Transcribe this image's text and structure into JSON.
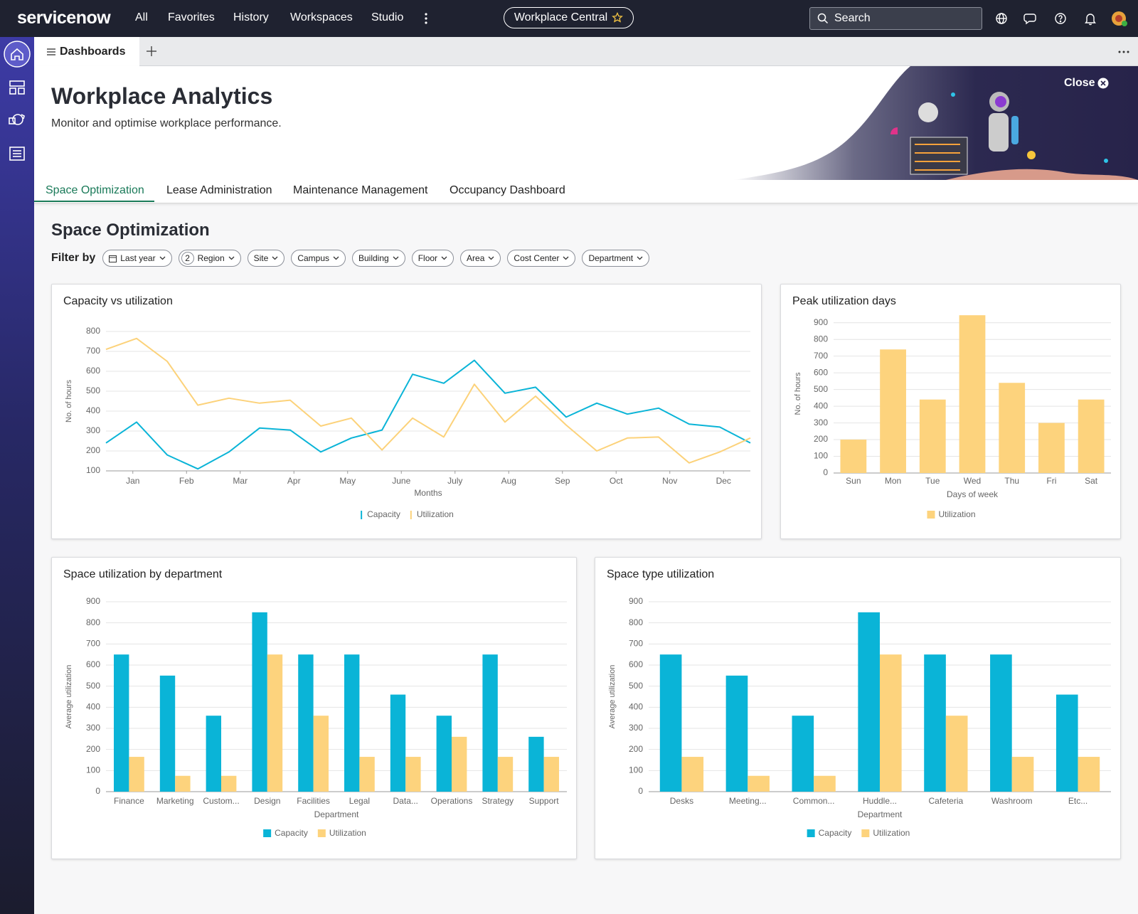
{
  "top_nav": {
    "logo": "servicenow",
    "items": [
      "All",
      "Favorites",
      "History",
      "Workspaces",
      "Studio"
    ],
    "workspace": "Workplace Central",
    "search": "Search"
  },
  "tab_bar": {
    "tab": "Dashboards"
  },
  "header": {
    "title": "Workplace Analytics",
    "subtitle": "Monitor and optimise workplace performance.",
    "close": "Close"
  },
  "tabs": [
    "Space Optimization",
    "Lease Administration",
    "Maintenance Management",
    "Occupancy Dashboard"
  ],
  "section": {
    "title": "Space Optimization",
    "filter_label": "Filter by",
    "filters": [
      {
        "label": "Last year"
      },
      {
        "label": "Region",
        "count": 2
      },
      {
        "label": "Site"
      },
      {
        "label": "Campus"
      },
      {
        "label": "Building"
      },
      {
        "label": "Floor"
      },
      {
        "label": "Area"
      },
      {
        "label": "Cost Center"
      },
      {
        "label": "Department"
      }
    ]
  },
  "chart_data": [
    {
      "type": "line",
      "title": "Capacity vs utilization",
      "x_label": "Months",
      "y_label": "No. of hours",
      "x": [
        0.5,
        1.07,
        1.64,
        2.21,
        2.79,
        3.36,
        3.93,
        4.5,
        5.07,
        5.64,
        6.21,
        6.79,
        7.36,
        7.93,
        8.5,
        9.07,
        9.64,
        10.21,
        10.79,
        11.36,
        11.93,
        12.5
      ],
      "xlim": [
        0.5,
        12.5
      ],
      "xticks": [
        {
          "value": 1,
          "label": "Jan"
        },
        {
          "value": 2,
          "label": "Feb"
        },
        {
          "value": 3,
          "label": "Mar"
        },
        {
          "value": 4,
          "label": "Apr"
        },
        {
          "value": 5,
          "label": "May"
        },
        {
          "value": 6,
          "label": "June"
        },
        {
          "value": 7,
          "label": "July"
        },
        {
          "value": 8,
          "label": "Aug"
        },
        {
          "value": 9,
          "label": "Sep"
        },
        {
          "value": 10,
          "label": "Oct"
        },
        {
          "value": 11,
          "label": "Nov"
        },
        {
          "value": 12,
          "label": "Dec"
        }
      ],
      "ylim": [
        100,
        800
      ],
      "yticks": [
        100,
        200,
        300,
        400,
        500,
        600,
        700,
        800
      ],
      "grid": true,
      "series": [
        {
          "name": "Capacity",
          "color": "#0ab4d7",
          "values": [
            240,
            345,
            180,
            110,
            195,
            315,
            305,
            195,
            265,
            305,
            585,
            540,
            655,
            490,
            520,
            370,
            440,
            385,
            415,
            335,
            320,
            240
          ]
        },
        {
          "name": "Utilization",
          "color": "#fcd27a",
          "values": [
            710,
            765,
            650,
            430,
            465,
            440,
            455,
            325,
            365,
            205,
            365,
            270,
            535,
            345,
            475,
            330,
            200,
            265,
            270,
            140,
            195,
            265
          ]
        }
      ]
    },
    {
      "type": "bar",
      "title": "Peak utilization days",
      "x_label": "Days of week",
      "y_label": "No. of hours",
      "categories": [
        "Sun",
        "Mon",
        "Tue",
        "Wed",
        "Thu",
        "Fri",
        "Sat"
      ],
      "ylim": [
        0,
        950
      ],
      "yticks": [
        0,
        100,
        200,
        300,
        400,
        500,
        600,
        700,
        800,
        900
      ],
      "grid": true,
      "series": [
        {
          "name": "Utilization",
          "color": "#fdd37d",
          "values": [
            200,
            740,
            440,
            945,
            540,
            300,
            440
          ]
        }
      ]
    },
    {
      "type": "bar",
      "title": "Space utilization by department",
      "x_label": "Department",
      "y_label": "Average utilization",
      "categories": [
        "Finance",
        "Marketing",
        "Custom...",
        "Design",
        "Facilities",
        "Legal",
        "Data...",
        "Operations",
        "Strategy",
        "Support"
      ],
      "ylim": [
        0,
        900
      ],
      "yticks": [
        0,
        100,
        200,
        300,
        400,
        500,
        600,
        700,
        800,
        900
      ],
      "grid": true,
      "series": [
        {
          "name": "Capacity",
          "color": "#0ab4d7",
          "values": [
            650,
            550,
            360,
            850,
            650,
            650,
            460,
            360,
            650,
            260
          ]
        },
        {
          "name": "Utilization",
          "color": "#fdd37d",
          "values": [
            165,
            75,
            75,
            650,
            360,
            165,
            165,
            260,
            165,
            165
          ]
        }
      ]
    },
    {
      "type": "bar",
      "title": "Space type utilization",
      "x_label": "Department",
      "y_label": "Average utilization",
      "categories": [
        "Desks",
        "Meeting...",
        "Common...",
        "Huddle...",
        "Cafeteria",
        "Washroom",
        "Etc..."
      ],
      "ylim": [
        0,
        900
      ],
      "yticks": [
        0,
        100,
        200,
        300,
        400,
        500,
        600,
        700,
        800,
        900
      ],
      "grid": true,
      "series": [
        {
          "name": "Capacity",
          "color": "#0ab4d7",
          "values": [
            650,
            550,
            360,
            850,
            650,
            650,
            460
          ]
        },
        {
          "name": "Utilization",
          "color": "#fdd37d",
          "values": [
            165,
            75,
            75,
            650,
            360,
            165,
            165
          ]
        }
      ]
    }
  ]
}
